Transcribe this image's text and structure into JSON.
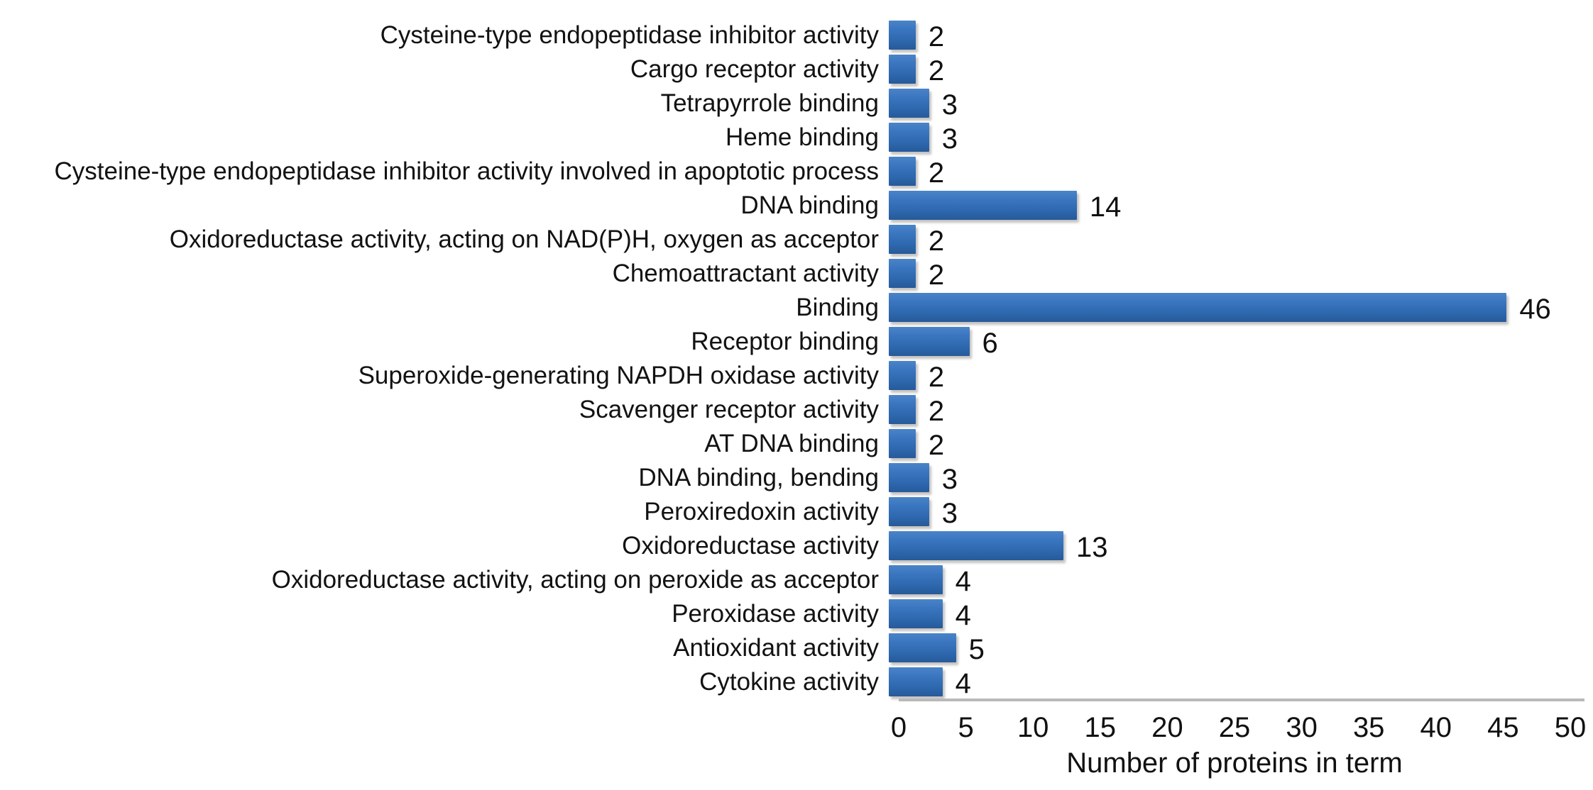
{
  "chart_data": {
    "type": "bar",
    "orientation": "horizontal",
    "title": "",
    "xlabel": "Number of proteins in term",
    "ylabel": "",
    "xlim": [
      0,
      50
    ],
    "xticks": [
      0,
      5,
      10,
      15,
      20,
      25,
      30,
      35,
      40,
      45,
      50
    ],
    "grid": false,
    "legend": "none",
    "value_labels_shown": true,
    "colors": {
      "bar_main": "#2f6cb5",
      "bar_gradient_top": "#4a84c8",
      "bar_gradient_upper": "#3a76c0",
      "bar_gradient_lower": "#2d66ac",
      "bar_gradient_bottom": "#265a9a",
      "axis_line": "#b9b9b9",
      "text": "#111111"
    },
    "categories": [
      "Cysteine-type endopeptidase inhibitor activity",
      "Cargo receptor activity",
      "Tetrapyrrole binding",
      "Heme binding",
      "Cysteine-type endopeptidase inhibitor activity involved in apoptotic process",
      "DNA binding",
      "Oxidoreductase activity, acting on NAD(P)H, oxygen as acceptor",
      "Chemoattractant activity",
      "Binding",
      "Receptor binding",
      "Superoxide-generating NAPDH oxidase activity",
      "Scavenger receptor activity",
      "AT DNA binding",
      "DNA binding, bending",
      "Peroxiredoxin activity",
      "Oxidoreductase activity",
      "Oxidoreductase activity, acting on peroxide as acceptor",
      "Peroxidase activity",
      "Antioxidant activity",
      "Cytokine activity"
    ],
    "values": [
      2,
      2,
      3,
      3,
      2,
      14,
      2,
      2,
      46,
      6,
      2,
      2,
      2,
      3,
      3,
      13,
      4,
      4,
      5,
      4
    ]
  }
}
